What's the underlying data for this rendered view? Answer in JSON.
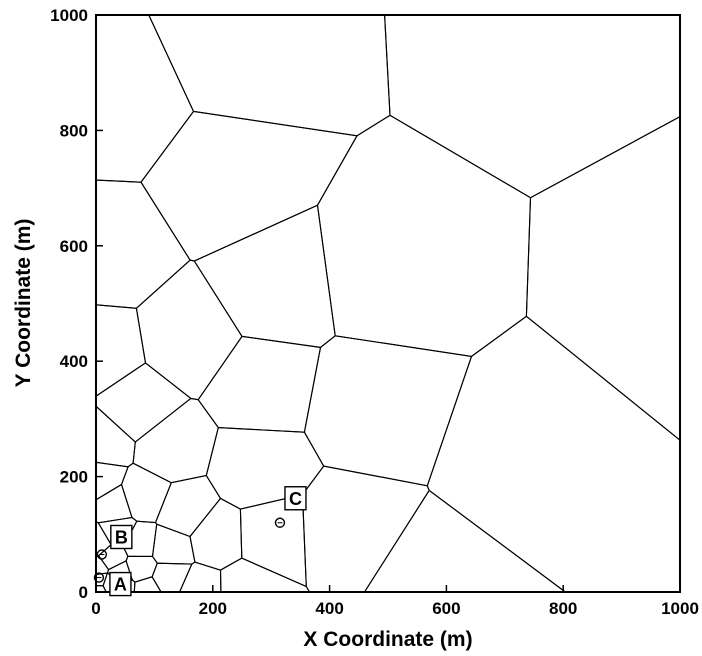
{
  "chart_data": {
    "type": "voronoi-mesh",
    "xlabel": "X Coordinate (m)",
    "ylabel": "Y Coordinate (m)",
    "xlim": [
      0,
      1000
    ],
    "ylim": [
      0,
      1000
    ],
    "x_ticks": [
      "0",
      "200",
      "400",
      "600",
      "800",
      "1000"
    ],
    "y_ticks": [
      "0",
      "200",
      "400",
      "600",
      "800",
      "1000"
    ],
    "grid": false,
    "mesh_refinement_center": [
      0,
      0
    ],
    "markers": [
      {
        "label": "A",
        "x": 5,
        "y": 25
      },
      {
        "label": "B",
        "x": 10,
        "y": 65
      },
      {
        "label": "C",
        "x": 315,
        "y": 120
      }
    ]
  }
}
